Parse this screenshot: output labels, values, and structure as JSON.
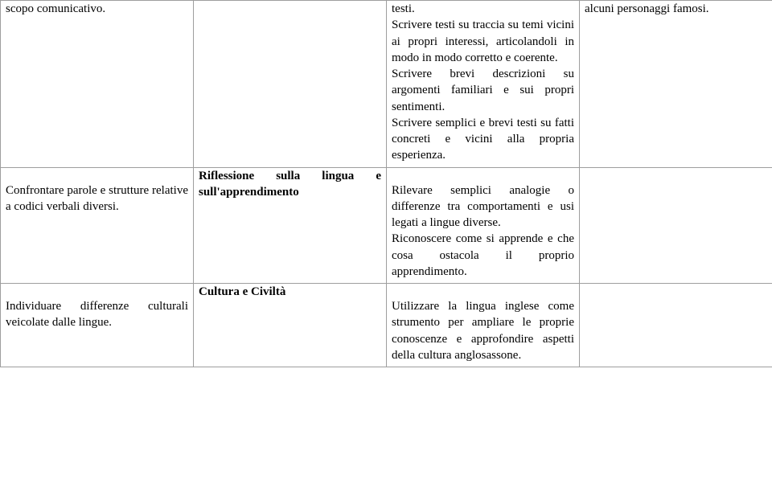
{
  "row1": {
    "c1": "scopo comunicativo.",
    "c3_a": "testi.",
    "c3_b": "Scrivere testi su traccia su temi vicini ai propri interessi, articolandoli in modo in modo corretto e coerente.",
    "c3_c": "Scrivere brevi descrizioni su argomenti familiari e sui propri sentimenti.",
    "c3_d": "Scrivere semplici e brevi testi su fatti concreti e vicini alla propria esperienza.",
    "c4": "alcuni personaggi famosi."
  },
  "row2": {
    "c1": "Confrontare parole e strutture relative a codici verbali diversi.",
    "c2_a": "Riflessione sulla lingua e sull'apprendimento",
    "c3_a": "Rilevare semplici analogie o differenze tra comportamenti e usi legati a lingue diverse.",
    "c3_b": "Riconoscere come si apprende e che cosa ostacola il proprio apprendimento."
  },
  "row3": {
    "c1": "Individuare differenze culturali veicolate dalle lingue.",
    "c2_a": "Cultura e Civiltà",
    "c3_a": "Utilizzare la lingua inglese come strumento per ampliare le proprie conoscenze e approfondire aspetti della cultura anglosassone."
  }
}
